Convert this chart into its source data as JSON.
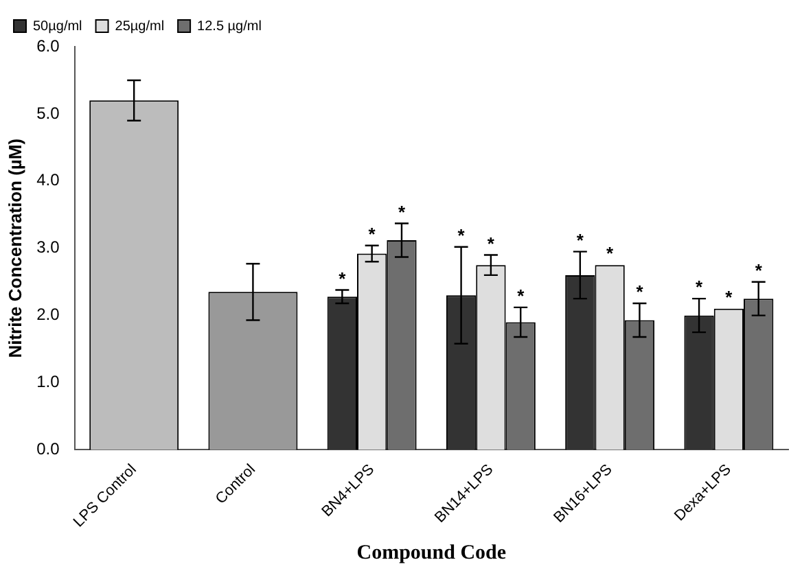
{
  "chart_data": {
    "type": "bar",
    "xlabel": "Compound Code",
    "ylabel": "Nitrite Concentration (µM)",
    "categories": [
      "LPS Control",
      "Control",
      "BN4+LPS",
      "BN14+LPS",
      "BN16+LPS",
      "Dexa+LPS"
    ],
    "series": [
      {
        "colors": [
          "#bcbcbc",
          "#999999",
          null,
          null,
          null,
          null
        ],
        "color": "#bcbcbc",
        "values": [
          5.2,
          2.35,
          null,
          null,
          null,
          null
        ],
        "errors": [
          0.3,
          0.42,
          null,
          null,
          null,
          null
        ]
      },
      {
        "name": "50µg/ml",
        "color": "#333333",
        "values": [
          null,
          null,
          2.28,
          2.3,
          2.6,
          2.0
        ],
        "errors": [
          null,
          null,
          0.1,
          0.72,
          0.35,
          0.25
        ],
        "value_labels": [
          null,
          null,
          "*",
          "*",
          "*",
          "*"
        ]
      },
      {
        "name": "25µg/ml",
        "color": "#dedede",
        "values": [
          null,
          null,
          2.92,
          2.75,
          2.75,
          2.1
        ],
        "errors": [
          null,
          null,
          0.12,
          0.15,
          null,
          null
        ],
        "value_labels": [
          null,
          null,
          "*",
          "*",
          "*",
          "*"
        ]
      },
      {
        "name": "12.5 µg/ml",
        "color": "#6e6e6e",
        "values": [
          null,
          null,
          3.12,
          1.9,
          1.93,
          2.25
        ],
        "errors": [
          null,
          null,
          0.25,
          0.22,
          0.25,
          0.25
        ],
        "value_labels": [
          null,
          null,
          "*",
          "*",
          "*",
          "*"
        ]
      }
    ],
    "ylim": [
      0,
      6
    ],
    "yticks": [
      {
        "value": 0,
        "label": "0.0"
      },
      {
        "value": 1,
        "label": "1.0"
      },
      {
        "value": 2,
        "label": "2.0"
      },
      {
        "value": 3,
        "label": "3.0"
      },
      {
        "value": 4,
        "label": "4.0"
      },
      {
        "value": 5,
        "label": "5.0"
      },
      {
        "value": 6,
        "label": "6.0"
      }
    ],
    "grid": false,
    "legend": "top"
  }
}
